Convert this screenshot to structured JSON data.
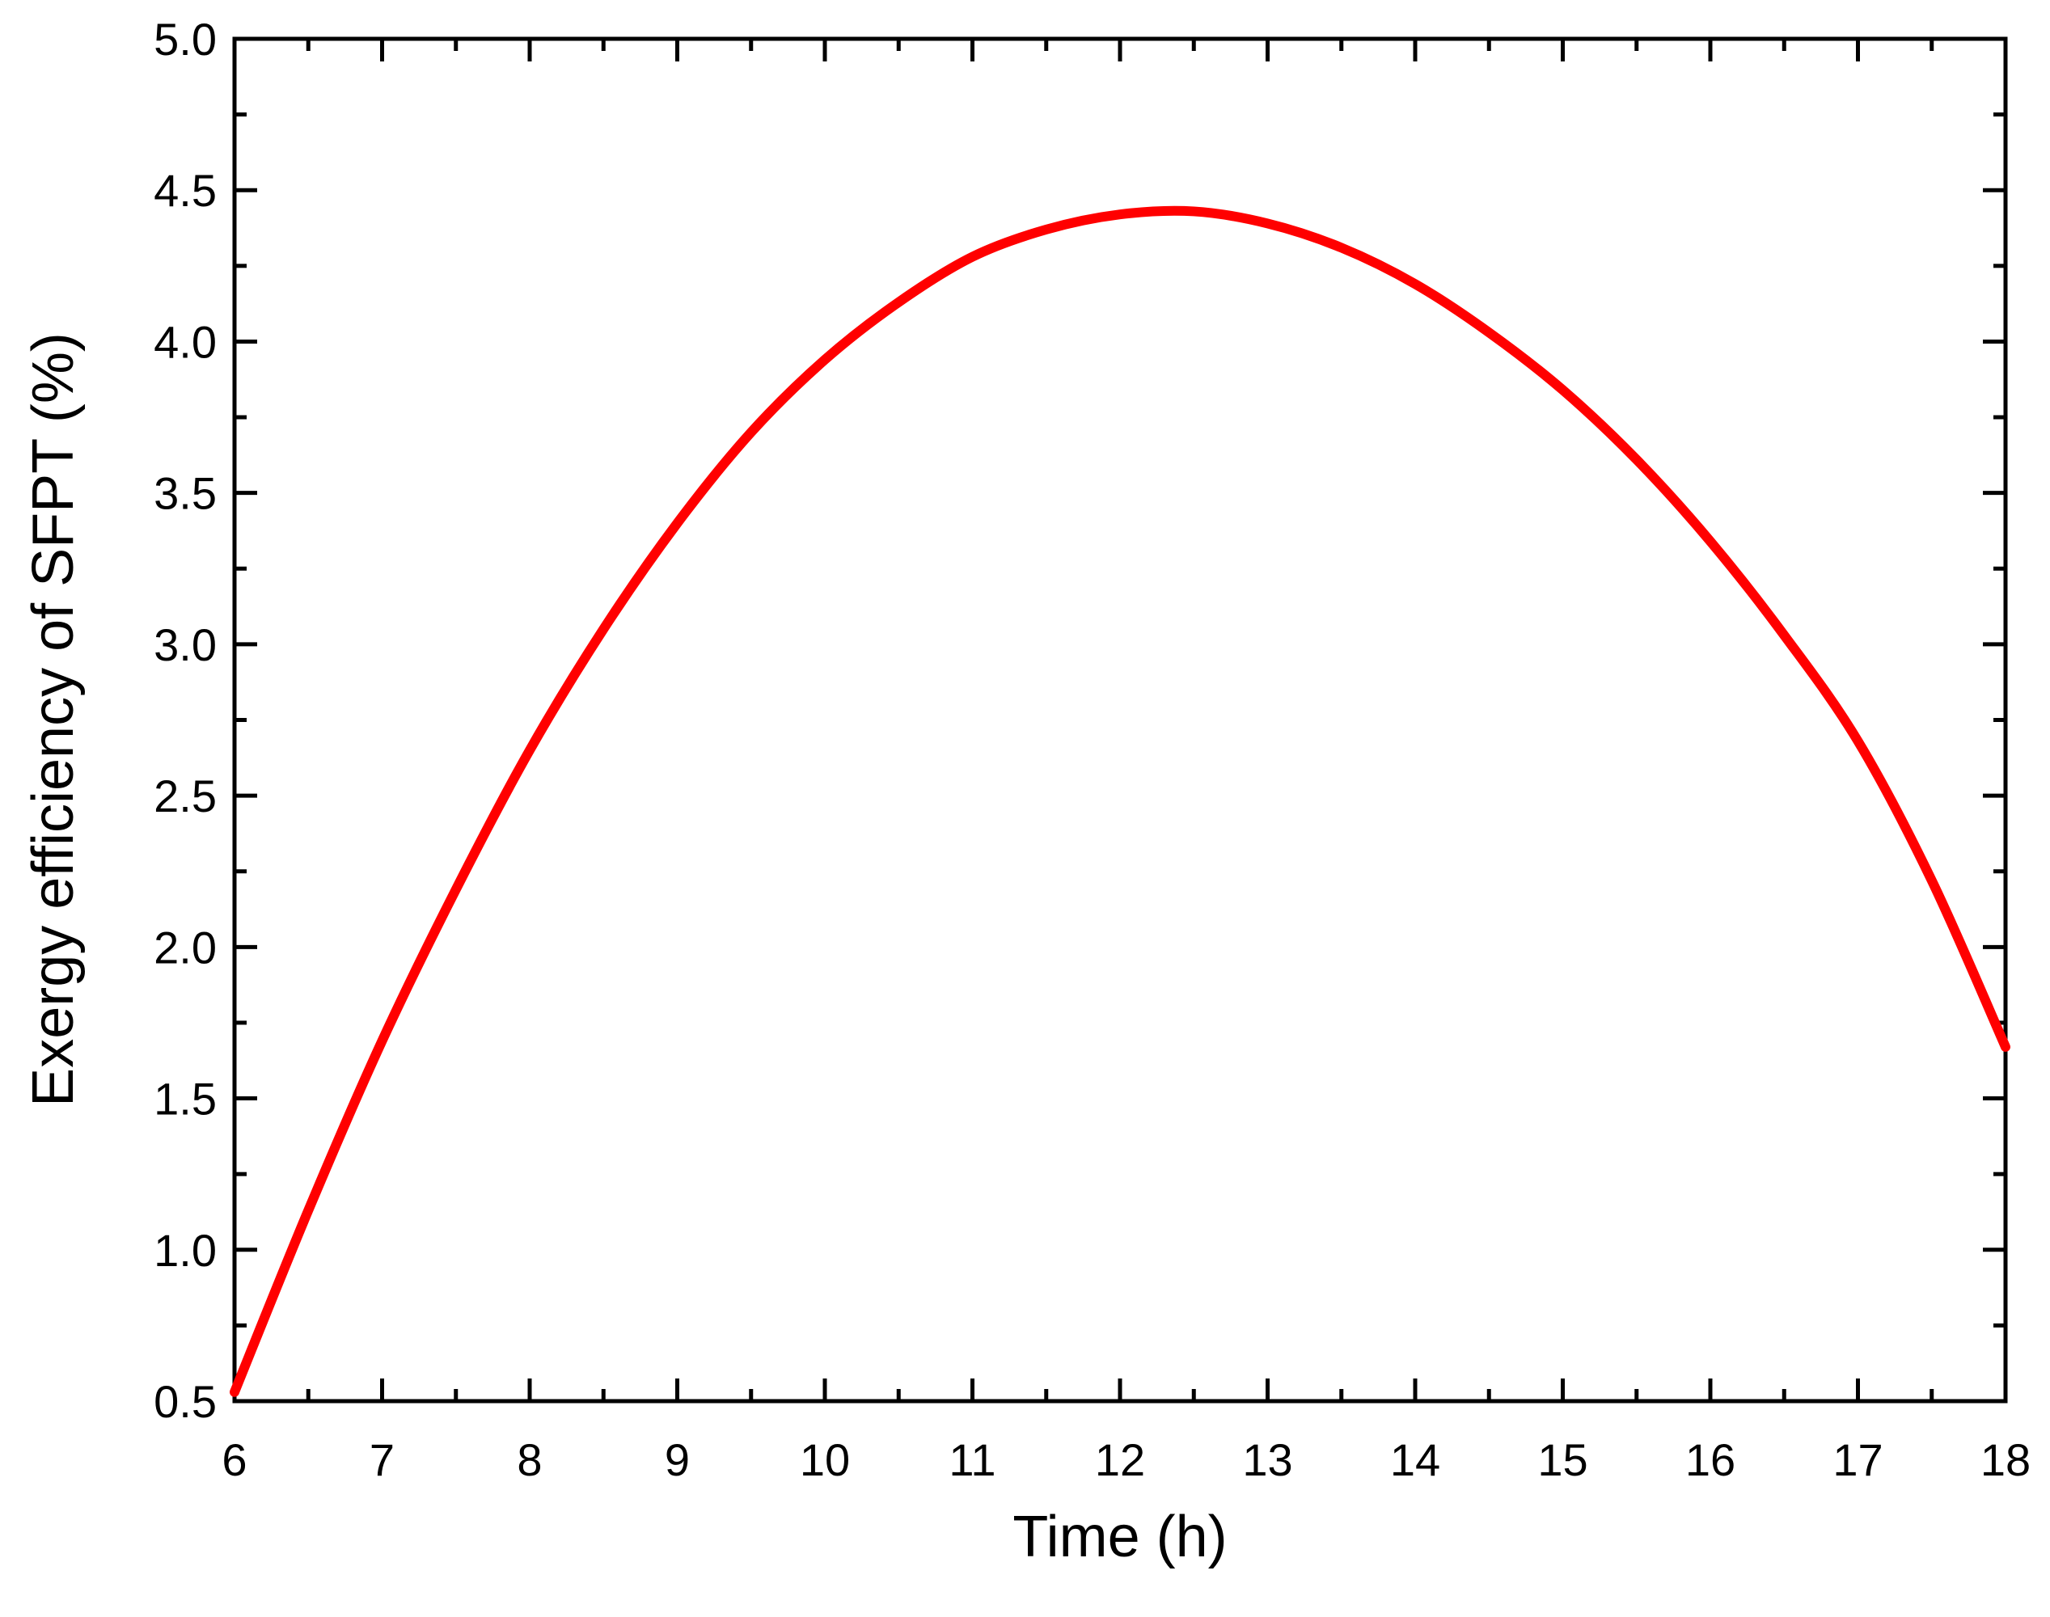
{
  "chart_data": {
    "type": "line",
    "xlabel": "Time (h)",
    "ylabel": "Exergy efficiency of SFPT (%)",
    "xlim": [
      6,
      18
    ],
    "ylim": [
      0.5,
      5.0
    ],
    "x_ticks": [
      "6",
      "7",
      "8",
      "9",
      "10",
      "11",
      "12",
      "13",
      "14",
      "15",
      "16",
      "17",
      "18"
    ],
    "y_ticks": [
      "0.5",
      "1.0",
      "1.5",
      "2.0",
      "2.5",
      "3.0",
      "3.5",
      "4.0",
      "4.5",
      "5.0"
    ],
    "series": [
      {
        "color": "#ff0000",
        "x": [
          6,
          6.5,
          7,
          7.5,
          8,
          8.5,
          9,
          9.5,
          10,
          10.5,
          11,
          11.5,
          12,
          12.5,
          13,
          13.5,
          14,
          14.5,
          15,
          15.5,
          16,
          16.5,
          17,
          17.5,
          18
        ],
        "y": [
          0.53,
          1.13,
          1.69,
          2.19,
          2.65,
          3.05,
          3.4,
          3.7,
          3.94,
          4.13,
          4.28,
          4.37,
          4.42,
          4.43,
          4.39,
          4.31,
          4.19,
          4.03,
          3.84,
          3.61,
          3.34,
          3.03,
          2.68,
          2.22,
          1.67
        ]
      }
    ]
  }
}
